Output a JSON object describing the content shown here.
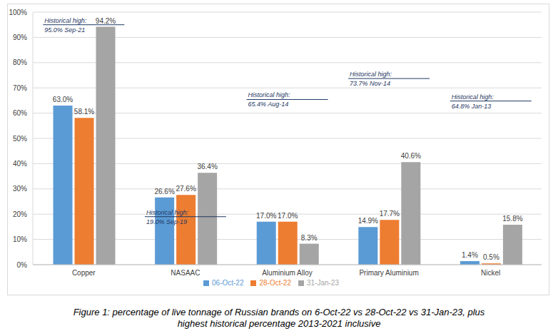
{
  "chart_data": {
    "type": "bar",
    "caption": "Figure 1: percentage of live tonnage of Russian brands on 6-Oct-22 vs 28-Oct-22 vs 31-Jan-23, plus highest historical percentage 2013-2021 inclusive",
    "categories": [
      "Copper",
      "NASAAC",
      "Aluminium Alloy",
      "Primary Aluminium",
      "Nickel"
    ],
    "series": [
      {
        "name": "06-Oct-22",
        "color": "#5b9bd5",
        "values": [
          63.0,
          26.6,
          17.0,
          14.9,
          1.4
        ],
        "value_labels": [
          "63.0%",
          "26.6%",
          "17.0%",
          "14.9%",
          "1.4%"
        ]
      },
      {
        "name": "28-Oct-22",
        "color": "#ed7d31",
        "values": [
          58.1,
          27.6,
          17.0,
          17.7,
          0.5
        ],
        "value_labels": [
          "58.1%",
          "27.6%",
          "17.0%",
          "17.7%",
          "0.5%"
        ]
      },
      {
        "name": "31-Jan-23",
        "color": "#a5a5a5",
        "values": [
          94.2,
          36.4,
          8.3,
          40.6,
          15.8
        ],
        "value_labels": [
          "94.2%",
          "36.4%",
          "8.3%",
          "40.6%",
          "15.8%"
        ]
      }
    ],
    "ylim": [
      0,
      100
    ],
    "yticks": [
      {
        "value": 0,
        "label": "0%"
      },
      {
        "value": 10,
        "label": "10%"
      },
      {
        "value": 20,
        "label": "20%"
      },
      {
        "value": 30,
        "label": "30%"
      },
      {
        "value": 40,
        "label": "40%"
      },
      {
        "value": 50,
        "label": "50%"
      },
      {
        "value": 60,
        "label": "60%"
      },
      {
        "value": 70,
        "label": "70%"
      },
      {
        "value": 80,
        "label": "80%"
      },
      {
        "value": 90,
        "label": "90%"
      },
      {
        "value": 100,
        "label": "100%"
      }
    ],
    "grid": true,
    "data_labels": true,
    "legend": "bottom",
    "annotations": [
      {
        "category": "Copper",
        "text": "Historical high:",
        "value": 95.0,
        "label": "95.0% Sep-21"
      },
      {
        "category": "NASAAC",
        "text": "Historical high:",
        "value": 19.0,
        "label": "19.0% Sep-19"
      },
      {
        "category": "Aluminium Alloy",
        "text": "Historical high:",
        "value": 65.4,
        "label": "65.4% Aug-14"
      },
      {
        "category": "Primary Aluminium",
        "text": "Historical high:",
        "value": 73.7,
        "label": "73.7% Nov-14"
      },
      {
        "category": "Nickel",
        "text": "Historical high:",
        "value": 64.8,
        "label": "64.8% Jan-13"
      }
    ]
  }
}
